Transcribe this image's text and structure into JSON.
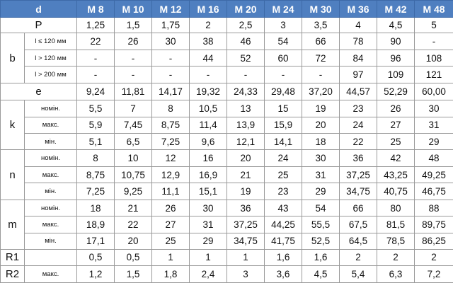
{
  "header": {
    "corner": "d",
    "sizes": [
      "M 8",
      "M 10",
      "M 12",
      "M 16",
      "M 20",
      "M 24",
      "M 30",
      "M 36",
      "M 42",
      "M 48"
    ]
  },
  "rows": {
    "P": {
      "label": "P",
      "values": [
        "1,25",
        "1,5",
        "1,75",
        "2",
        "2,5",
        "3",
        "3,5",
        "4",
        "4,5",
        "5"
      ]
    },
    "b": {
      "label": "b",
      "r120": {
        "sub": "l ≤ 120 мм",
        "values": [
          "22",
          "26",
          "30",
          "38",
          "46",
          "54",
          "66",
          "78",
          "90",
          "-"
        ]
      },
      "r120_200": {
        "sub": "l > 120 мм",
        "values": [
          "-",
          "-",
          "-",
          "44",
          "52",
          "60",
          "72",
          "84",
          "96",
          "108"
        ]
      },
      "r200": {
        "sub": "l > 200 мм",
        "values": [
          "-",
          "-",
          "-",
          "-",
          "-",
          "-",
          "-",
          "97",
          "109",
          "121"
        ]
      }
    },
    "e": {
      "label": "e",
      "values": [
        "9,24",
        "11,81",
        "14,17",
        "19,32",
        "24,33",
        "29,48",
        "37,20",
        "44,57",
        "52,29",
        "60,00"
      ]
    },
    "k": {
      "label": "k",
      "nom": {
        "sub": "номін.",
        "values": [
          "5,5",
          "7",
          "8",
          "10,5",
          "13",
          "15",
          "19",
          "23",
          "26",
          "30"
        ]
      },
      "max": {
        "sub": "макс.",
        "values": [
          "5,9",
          "7,45",
          "8,75",
          "11,4",
          "13,9",
          "15,9",
          "20",
          "24",
          "27",
          "31"
        ]
      },
      "min": {
        "sub": "мін.",
        "values": [
          "5,1",
          "6,5",
          "7,25",
          "9,6",
          "12,1",
          "14,1",
          "18",
          "22",
          "25",
          "29"
        ]
      }
    },
    "n": {
      "label": "n",
      "nom": {
        "sub": "номін.",
        "values": [
          "8",
          "10",
          "12",
          "16",
          "20",
          "24",
          "30",
          "36",
          "42",
          "48"
        ]
      },
      "max": {
        "sub": "макс.",
        "values": [
          "8,75",
          "10,75",
          "12,9",
          "16,9",
          "21",
          "25",
          "31",
          "37,25",
          "43,25",
          "49,25"
        ]
      },
      "min": {
        "sub": "мін.",
        "values": [
          "7,25",
          "9,25",
          "11,1",
          "15,1",
          "19",
          "23",
          "29",
          "34,75",
          "40,75",
          "46,75"
        ]
      }
    },
    "m": {
      "label": "m",
      "nom": {
        "sub": "номін.",
        "values": [
          "18",
          "21",
          "26",
          "30",
          "36",
          "43",
          "54",
          "66",
          "80",
          "88"
        ]
      },
      "max": {
        "sub": "макс.",
        "values": [
          "18,9",
          "22",
          "27",
          "31",
          "37,25",
          "44,25",
          "55,5",
          "67,5",
          "81,5",
          "89,75"
        ]
      },
      "min": {
        "sub": "мін.",
        "values": [
          "17,1",
          "20",
          "25",
          "29",
          "34,75",
          "41,75",
          "52,5",
          "64,5",
          "78,5",
          "86,25"
        ]
      }
    },
    "R1": {
      "label": "R1",
      "values": [
        "0,5",
        "0,5",
        "1",
        "1",
        "1",
        "1,6",
        "1,6",
        "2",
        "2",
        "2"
      ]
    },
    "R2": {
      "label": "R2",
      "sub": "макс.",
      "values": [
        "1,2",
        "1,5",
        "1,8",
        "2,4",
        "3",
        "3,6",
        "4,5",
        "5,4",
        "6,3",
        "7,2"
      ]
    }
  },
  "colors": {
    "header_bg": "#4f7fc0",
    "header_text": "#ffffff",
    "grid": "#9a9a9a"
  }
}
